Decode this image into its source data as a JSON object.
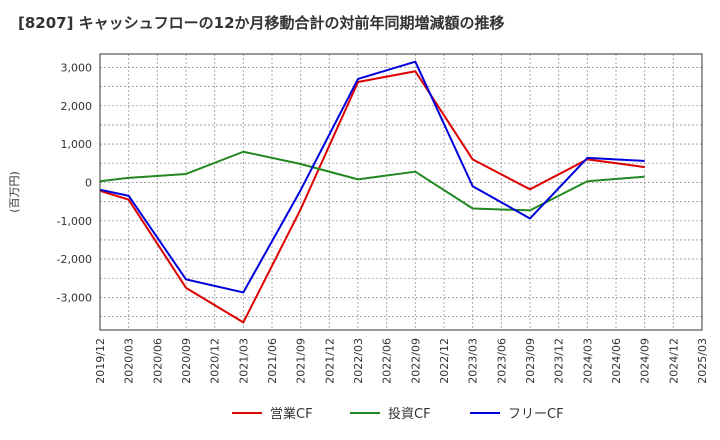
{
  "chart_data": {
    "type": "line",
    "title": "[8207]  キャッシュフローの12か月移動合計の対前年同期増減額の推移",
    "ylabel": "(百万円)",
    "xlabel": "",
    "ylim": [
      -3850,
      3350
    ],
    "yticks": [
      3000,
      2000,
      1000,
      0,
      -1000,
      -2000,
      -3000
    ],
    "ytick_labels": [
      "3,000",
      "2,000",
      "1,000",
      "0",
      "-1,000",
      "-2,000",
      "-3,000"
    ],
    "categories": [
      "2019/12",
      "2020/03",
      "2020/06",
      "2020/09",
      "2020/12",
      "2021/03",
      "2021/06",
      "2021/09",
      "2021/12",
      "2022/03",
      "2022/06",
      "2022/09",
      "2022/12",
      "2023/03",
      "2023/06",
      "2023/09",
      "2023/12",
      "2024/03",
      "2024/06",
      "2024/09",
      "2024/12",
      "2025/03"
    ],
    "grid": true,
    "legend_position": "bottom",
    "series": [
      {
        "name": "営業CF",
        "color": "#dd0000",
        "values": [
          -220,
          -450,
          null,
          -2750,
          null,
          -3650,
          null,
          -700,
          null,
          2620,
          null,
          2900,
          null,
          600,
          null,
          -180,
          null,
          600,
          null,
          400,
          null,
          null
        ]
      },
      {
        "name": "投資CF",
        "color": "#228822",
        "values": [
          30,
          120,
          null,
          220,
          null,
          800,
          null,
          480,
          null,
          80,
          null,
          280,
          null,
          -680,
          null,
          -730,
          null,
          30,
          null,
          150,
          null,
          null
        ]
      },
      {
        "name": "フリーCF",
        "color": "#0000dd",
        "values": [
          -190,
          -350,
          null,
          -2530,
          null,
          -2870,
          null,
          -200,
          null,
          2700,
          null,
          3150,
          null,
          -100,
          null,
          -940,
          null,
          640,
          null,
          560,
          null,
          null
        ]
      }
    ]
  }
}
